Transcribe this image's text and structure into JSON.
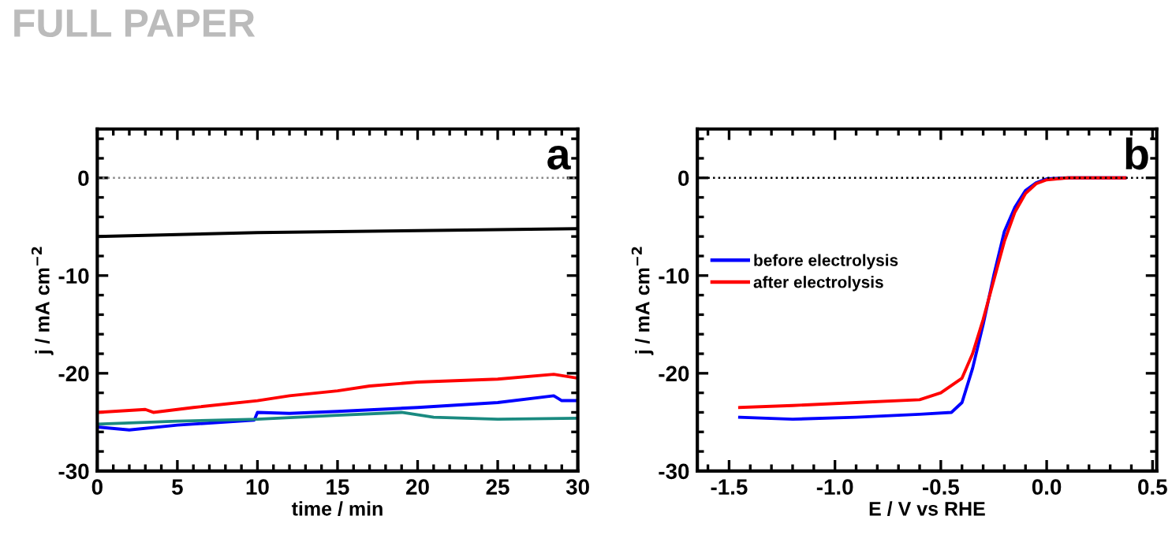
{
  "chart_data": [
    {
      "type": "line",
      "xlabel": "time / min",
      "ylabel": "j / mA cm$^{−2}$",
      "annotations": [
        "FULL PAPER",
        "a"
      ],
      "xlim": [
        0,
        30
      ],
      "ylim": [
        -30,
        5
      ],
      "xticks": [
        0,
        5,
        10,
        15,
        20,
        25,
        30
      ],
      "yticks": [
        -30,
        -20,
        -10,
        0
      ],
      "grid": false,
      "legend": false,
      "marker": "none",
      "line_style": "solid",
      "ref_lines": [
        {
          "axis": "y",
          "value": 0,
          "label": null,
          "color": "#888888",
          "line_style": "dotted"
        }
      ],
      "series": [
        {
          "color": "#000000",
          "x": [
            0,
            10,
            20,
            30
          ],
          "values": [
            -6.0,
            -5.6,
            -5.4,
            -5.2
          ]
        },
        {
          "color": "#ff0000",
          "x": [
            0,
            3,
            3.5,
            6,
            10,
            12,
            15,
            17,
            20,
            25,
            28.5,
            30
          ],
          "values": [
            -24.0,
            -23.7,
            -24.0,
            -23.5,
            -22.8,
            -22.3,
            -21.8,
            -21.3,
            -20.9,
            -20.6,
            -20.1,
            -20.5
          ]
        },
        {
          "color": "#0000ff",
          "x": [
            0,
            2,
            5,
            9.8,
            10,
            12,
            15,
            20,
            25,
            28.5,
            29,
            30
          ],
          "values": [
            -25.5,
            -25.8,
            -25.3,
            -24.8,
            -24.0,
            -24.1,
            -23.9,
            -23.5,
            -23.0,
            -22.3,
            -22.8,
            -22.8
          ]
        },
        {
          "color": "#1a8a80",
          "x": [
            0,
            5,
            10,
            15,
            19,
            21,
            25,
            30
          ],
          "values": [
            -25.2,
            -24.9,
            -24.7,
            -24.3,
            -24.0,
            -24.5,
            -24.7,
            -24.6
          ]
        }
      ]
    },
    {
      "type": "line",
      "xlabel": "E / V vs RHE",
      "ylabel": "j / mA cm$^{−2}$",
      "annotations": [
        "b"
      ],
      "xlim": [
        -1.65,
        0.52
      ],
      "ylim": [
        -30,
        5
      ],
      "xticks": [
        {
          "value": -1.5,
          "label": "-1.5"
        },
        {
          "value": -1.0,
          "label": "-1.0"
        },
        {
          "value": -0.5,
          "label": "-0.5"
        },
        {
          "value": 0.0,
          "label": "0.0"
        },
        {
          "value": 0.5,
          "label": "0.5"
        }
      ],
      "yticks": [
        -30,
        -20,
        -10,
        0
      ],
      "grid": false,
      "legend": "center left",
      "marker": "none",
      "line_style": "solid",
      "ref_lines": [
        {
          "axis": "y",
          "value": 0,
          "label": null,
          "color": "#000000",
          "line_style": "dotted"
        }
      ],
      "series": [
        {
          "name": "before electrolysis",
          "color": "#0000ff",
          "x": [
            -1.45,
            -1.2,
            -0.9,
            -0.6,
            -0.45,
            -0.4,
            -0.35,
            -0.3,
            -0.25,
            -0.2,
            -0.15,
            -0.1,
            -0.05,
            0,
            0.1,
            0.37
          ],
          "values": [
            -24.5,
            -24.7,
            -24.5,
            -24.2,
            -24.0,
            -23.0,
            -19.5,
            -15,
            -10,
            -5.5,
            -3,
            -1.3,
            -0.5,
            -0.1,
            0,
            0
          ]
        },
        {
          "name": "after electrolysis",
          "color": "#ff0000",
          "x": [
            -1.45,
            -1.2,
            -0.9,
            -0.6,
            -0.5,
            -0.4,
            -0.35,
            -0.3,
            -0.25,
            -0.2,
            -0.15,
            -0.1,
            -0.05,
            0,
            0.1,
            0.37
          ],
          "values": [
            -23.5,
            -23.3,
            -23.0,
            -22.7,
            -22.0,
            -20.5,
            -18,
            -14.5,
            -10.5,
            -6.5,
            -3.5,
            -1.6,
            -0.6,
            -0.2,
            0,
            0
          ]
        }
      ]
    }
  ]
}
